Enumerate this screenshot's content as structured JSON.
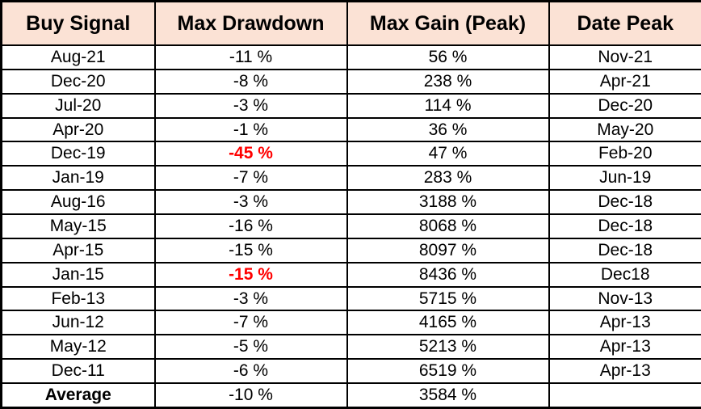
{
  "colors": {
    "header_background": "#FBE2D5",
    "border": "#000000",
    "highlight_red": "#FF0000",
    "body_text": "#000000",
    "row_background": "#FFFFFF"
  },
  "chart_data": {
    "type": "table",
    "title": "",
    "columns": [
      "Buy Signal",
      "Max Drawdown",
      "Max Gain (Peak)",
      "Date Peak"
    ],
    "rows": [
      [
        "Aug-21",
        "-11 %",
        "56 %",
        "Nov-21"
      ],
      [
        "Dec-20",
        "-8 %",
        "238 %",
        "Apr-21"
      ],
      [
        "Jul-20",
        "-3 %",
        "114 %",
        "Dec-20"
      ],
      [
        "Apr-20",
        "-1 %",
        "36 %",
        "May-20"
      ],
      [
        "Dec-19",
        "-45 %",
        "47 %",
        "Feb-20"
      ],
      [
        "Jan-19",
        "-7 %",
        "283 %",
        "Jun-19"
      ],
      [
        "Aug-16",
        "-3 %",
        "3188 %",
        "Dec-18"
      ],
      [
        "May-15",
        "-16 %",
        "8068 %",
        "Dec-18"
      ],
      [
        "Apr-15",
        "-15 %",
        "8097 %",
        "Dec-18"
      ],
      [
        "Jan-15",
        "-15 %",
        "8436 %",
        "Dec18"
      ],
      [
        "Feb-13",
        "-3 %",
        "5715 %",
        "Nov-13"
      ],
      [
        "Jun-12",
        "-7 %",
        "4165 %",
        "Apr-13"
      ],
      [
        "May-12",
        "-5 %",
        "5213 %",
        "Apr-13"
      ],
      [
        "Dec-11",
        "-6 %",
        "6519 %",
        "Apr-13"
      ],
      [
        "Average",
        "-10 %",
        "3584 %",
        ""
      ]
    ],
    "highlighted_cells": [
      {
        "row": 4,
        "col": 1,
        "color": "#FF0000",
        "value": "-45 %"
      },
      {
        "row": 9,
        "col": 1,
        "color": "#FF0000",
        "value": "-15 %"
      }
    ],
    "summary_row_label": "Average",
    "grid": true,
    "notes": "Row 'Jan-15' Date Peak shown as 'Dec18' without hyphen in source; Average row Date Peak empty"
  }
}
